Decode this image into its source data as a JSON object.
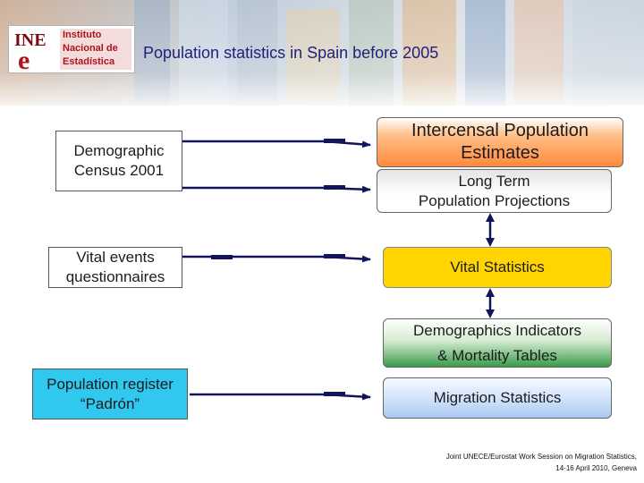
{
  "header": {
    "title": "Population statistics in Spain before 2005",
    "logo": {
      "mark": "INE",
      "lines": [
        "Instituto",
        "Nacional de",
        "Estadística"
      ]
    }
  },
  "sources": {
    "census": [
      "Demographic",
      "Census 2001"
    ],
    "vital_events": [
      "Vital events",
      "questionnaires"
    ],
    "register": [
      "Population register",
      "“Padrón”"
    ]
  },
  "outputs": {
    "intercensal": [
      "Intercensal Population",
      "Estimates"
    ],
    "projections": [
      "Long Term",
      "Population Projections"
    ],
    "vital_statistics": "Vital Statistics",
    "indicators": [
      "Demographics Indicators",
      "& Mortality Tables"
    ],
    "migration": "Migration Statistics"
  },
  "footer": {
    "line1": "Joint UNECE/Eurostat Work Session on Migration Statistics,",
    "line2": "14-16 April 2010, Geneva"
  },
  "colors": {
    "title": "#1f1f7a",
    "arrow": "#14145a",
    "vital_statistics_fill": "#ffd400",
    "register_fill": "#31c8f0",
    "intercensal_fill": "#ff8a3c",
    "indicators_fill": "#3a9a4a",
    "migration_fill": "#a9c8f0",
    "logo_red": "#b0121b"
  }
}
